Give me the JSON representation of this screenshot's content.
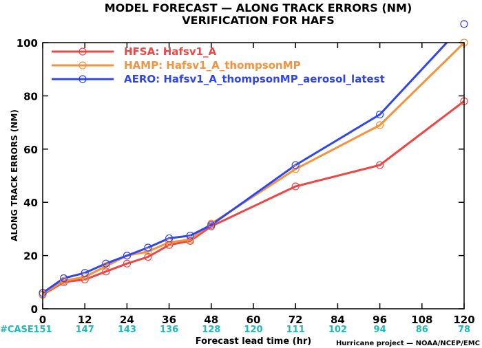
{
  "title_line1": "MODEL FORECAST — ALONG TRACK ERRORS (NM)",
  "title_line2": "VERIFICATION FOR HAFS",
  "case_label": "#CASE",
  "credit": "Hurricane project — NOAA/NCEP/EMC",
  "colors": {
    "case_text": "#1fb8b8"
  },
  "chart_data": {
    "type": "line",
    "xlabel": "Forecast lead time (hr)",
    "ylabel": "ALONG TRACK ERRORS (NM)",
    "xlim": [
      0,
      120
    ],
    "ylim": [
      0,
      100
    ],
    "x_ticks": [
      0,
      12,
      24,
      36,
      48,
      60,
      72,
      84,
      96,
      108,
      120
    ],
    "y_ticks": [
      0,
      20,
      40,
      60,
      80,
      100
    ],
    "grid": false,
    "legend_position": "top-left",
    "case_counts": [
      {
        "x": 0,
        "n": "151"
      },
      {
        "x": 12,
        "n": "147"
      },
      {
        "x": 24,
        "n": "143"
      },
      {
        "x": 36,
        "n": "136"
      },
      {
        "x": 48,
        "n": "128"
      },
      {
        "x": 60,
        "n": "120"
      },
      {
        "x": 72,
        "n": "111"
      },
      {
        "x": 84,
        "n": "102"
      },
      {
        "x": 96,
        "n": "94"
      },
      {
        "x": 108,
        "n": "86"
      },
      {
        "x": 120,
        "n": "78"
      }
    ],
    "series": [
      {
        "name": "HFSA: Hafsv1_A",
        "color": "#f04545",
        "x": [
          0,
          6,
          12,
          18,
          24,
          30,
          36,
          42,
          48,
          72,
          96,
          120
        ],
        "y": [
          5.3,
          10,
          11,
          14,
          17,
          19.5,
          24,
          25.5,
          31,
          46,
          54,
          78
        ]
      },
      {
        "name": "HAMP: Hafsv1_A_thompsonMP",
        "color": "#f5923a",
        "x": [
          0,
          6,
          12,
          18,
          24,
          30,
          36,
          42,
          48,
          72,
          96,
          120
        ],
        "y": [
          5.5,
          10.5,
          12,
          16,
          20,
          21.5,
          25,
          26,
          32,
          52.5,
          69,
          100
        ]
      },
      {
        "name": "AERO: Hafsv1_A_thompsonMP_aerosol_latest",
        "color": "#2f45f0",
        "x": [
          0,
          6,
          12,
          18,
          24,
          30,
          36,
          42,
          48,
          72,
          96,
          120
        ],
        "y": [
          6,
          11.5,
          13.5,
          17,
          20,
          23,
          26.5,
          27.5,
          31.5,
          54,
          73,
          107
        ]
      }
    ]
  }
}
